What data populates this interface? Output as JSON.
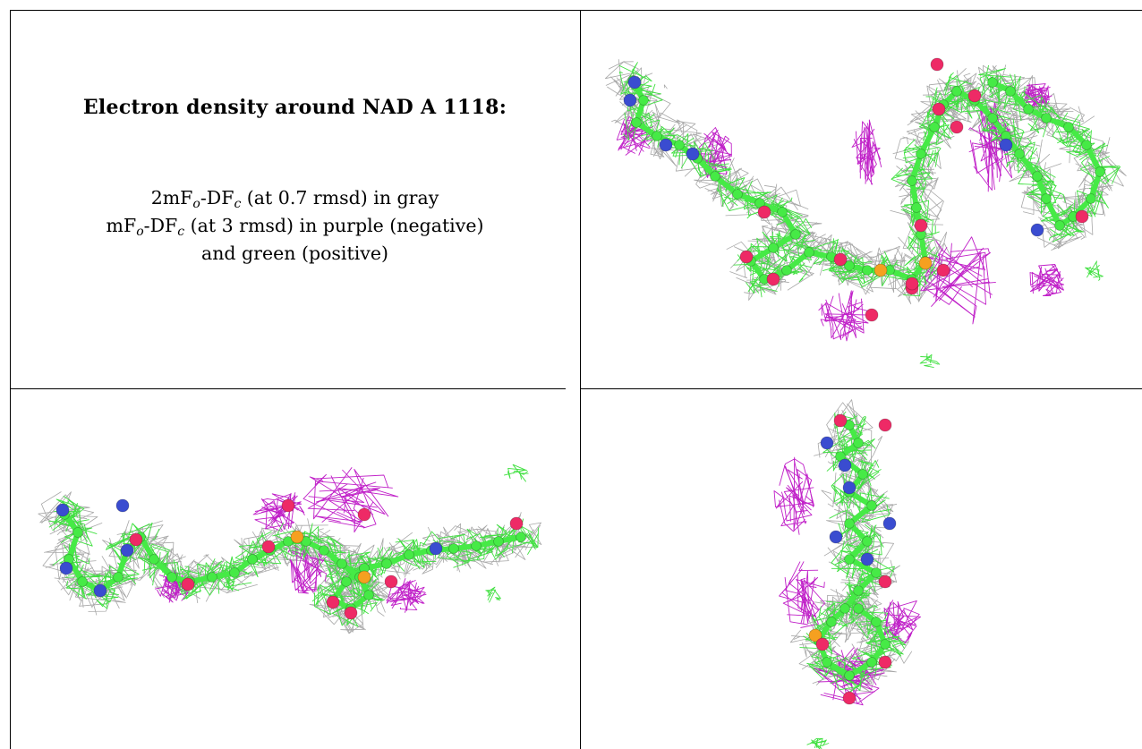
{
  "caption": {
    "title": "Electron density around NAD A 1118:",
    "line1": {
      "pre": "2mF",
      "sub1": "o",
      "mid": "-DF",
      "sub2": "c",
      "post": " (at 0.7 rmsd) in gray"
    },
    "line2": {
      "pre": "mF",
      "sub1": "o",
      "mid": "-DF",
      "sub2": "c",
      "post": " (at 3 rmsd) in purple (negative)"
    },
    "line3": "and green (positive)"
  },
  "colors": {
    "map_2fofc": "#a8a8a8",
    "map_fofc_negative": "#c020c8",
    "map_fofc_positive": "#40e040",
    "carbon": "#46ea46",
    "nitrogen": "#3a4cd0",
    "oxygen": "#ee2a66",
    "phosphorus": "#f5a020"
  },
  "panels": [
    {
      "view": "top-right"
    },
    {
      "view": "bottom-left"
    },
    {
      "view": "bottom-right"
    }
  ]
}
